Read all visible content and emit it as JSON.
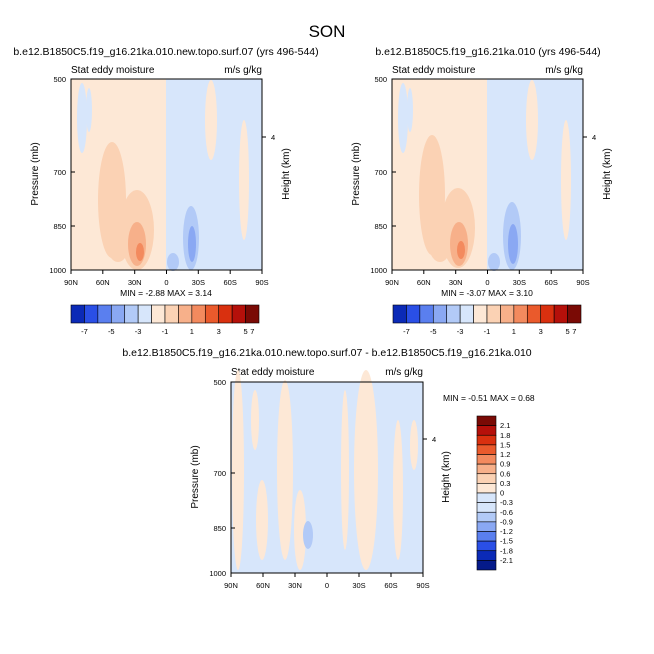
{
  "page_title": "SON",
  "colorbar_levels_full": [
    "-7",
    "-5",
    "-3",
    "-1",
    "1",
    "3",
    "5",
    "7"
  ],
  "colorbar_levels_diff": [
    "2.1",
    "1.8",
    "1.5",
    "1.2",
    "0.9",
    "0.6",
    "0.3",
    "0",
    "-0.3",
    "-0.6",
    "-0.9",
    "-1.2",
    "-1.5",
    "-1.8",
    "-2.1"
  ],
  "palette_full": [
    "#0b2ab7",
    "#2a4fe6",
    "#5a7fef",
    "#8aa8f3",
    "#b2caf7",
    "#d7e6fb",
    "#fde8d6",
    "#fbd2b4",
    "#f7b08a",
    "#f38a5e",
    "#ea5a2c",
    "#d9300f",
    "#b5100a",
    "#7a0a05"
  ],
  "palette_diff": [
    "#7a0a05",
    "#b5100a",
    "#d9300f",
    "#ea5a2c",
    "#f38a5e",
    "#f7b08a",
    "#fbd2b4",
    "#fde8d6",
    "#d7e6fb",
    "#b2caf7",
    "#8aa8f3",
    "#5a7fef",
    "#2a4fe6",
    "#0b2ab7",
    "#051a8a"
  ],
  "chart_data": [
    {
      "type": "heatmap",
      "title": "b.e12.B1850C5.f19_g16.21ka.010.new.topo.surf.07 (yrs 496-544)",
      "left_string": "Stat eddy moisture",
      "right_string": "m/s g/kg",
      "xlabel": "",
      "ylabel": "Pressure (mb)",
      "y2label": "Height (km)",
      "x_ticks": [
        "90N",
        "60N",
        "30N",
        "0",
        "30S",
        "60S",
        "90S"
      ],
      "y_ticks": [
        "500",
        "700",
        "850",
        "1000"
      ],
      "y2_ticks": [
        "4"
      ],
      "min": "-2.88",
      "max": "3.14",
      "min_label": "MIN = ",
      "max_label": "MAX = ",
      "stats_text": "MIN =  -2.88  MAX =  3.14"
    },
    {
      "type": "heatmap",
      "title": "b.e12.B1850C5.f19_g16.21ka.010 (yrs 496-544)",
      "left_string": "Stat eddy moisture",
      "right_string": "m/s g/kg",
      "xlabel": "",
      "ylabel": "Pressure (mb)",
      "y2label": "Height (km)",
      "x_ticks": [
        "90N",
        "60N",
        "30N",
        "0",
        "30S",
        "60S",
        "90S"
      ],
      "y_ticks": [
        "500",
        "700",
        "850",
        "1000"
      ],
      "y2_ticks": [
        "4"
      ],
      "stats_text": "MIN =  -3.07  MAX =  3.10"
    },
    {
      "type": "heatmap",
      "title": "b.e12.B1850C5.f19_g16.21ka.010.new.topo.surf.07 - b.e12.B1850C5.f19_g16.21ka.010",
      "left_string": "Stat eddy moisture",
      "right_string": "m/s g/kg",
      "xlabel": "",
      "ylabel": "Pressure (mb)",
      "y2label": "Height (km)",
      "x_ticks": [
        "90N",
        "60N",
        "30N",
        "0",
        "30S",
        "60S",
        "90S"
      ],
      "y_ticks": [
        "500",
        "700",
        "850",
        "1000"
      ],
      "y2_ticks": [
        "4"
      ],
      "stats_text": "MIN =  -0.51  MAX =  0.68"
    }
  ]
}
